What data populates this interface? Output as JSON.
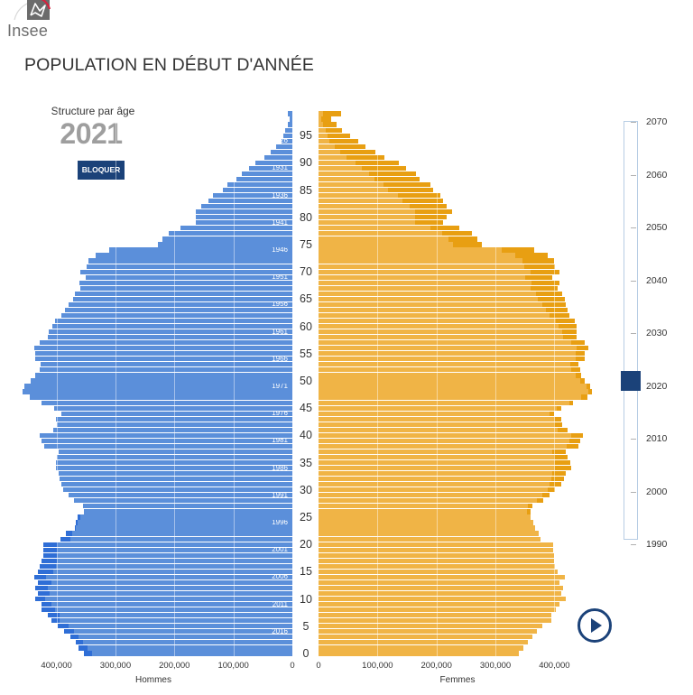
{
  "header": {
    "logo_text": "Insee",
    "title": "POPULATION EN DÉBUT D'ANNÉE"
  },
  "panel": {
    "subtitle": "Structure par âge",
    "year": "2021",
    "lock_button": "BLOQUER"
  },
  "slider": {
    "min": 1990,
    "max": 2070,
    "value": 2021,
    "labels": [
      "2070",
      "2060",
      "2050",
      "2040",
      "2030",
      "2020",
      "2010",
      "2000",
      "1990"
    ]
  },
  "play_button": {
    "icon": "play-icon"
  },
  "colors": {
    "hommes": "#5b8fda",
    "hommes_surplus": "#2f6ed6",
    "femmes": "#f0b446",
    "femmes_surplus": "#e89f12",
    "accent": "#1b4279"
  },
  "chart_data": {
    "type": "bar",
    "subtype": "population-pyramid",
    "title": "Structure par âge",
    "year": 2021,
    "xlabel_left": "Hommes",
    "xlabel_right": "Femmes",
    "ylabel": "Âge",
    "categories": [
      0,
      1,
      2,
      3,
      4,
      5,
      6,
      7,
      8,
      9,
      10,
      11,
      12,
      13,
      14,
      15,
      16,
      17,
      18,
      19,
      20,
      21,
      22,
      23,
      24,
      25,
      26,
      27,
      28,
      29,
      30,
      31,
      32,
      33,
      34,
      35,
      36,
      37,
      38,
      39,
      40,
      41,
      42,
      43,
      44,
      45,
      46,
      47,
      48,
      49,
      50,
      51,
      52,
      53,
      54,
      55,
      56,
      57,
      58,
      59,
      60,
      61,
      62,
      63,
      64,
      65,
      66,
      67,
      68,
      69,
      70,
      71,
      72,
      73,
      74,
      75,
      76,
      77,
      78,
      79,
      80,
      81,
      82,
      83,
      84,
      85,
      86,
      87,
      88,
      89,
      90,
      91,
      92,
      93,
      94,
      95,
      96,
      97,
      98,
      99
    ],
    "series": [
      {
        "name": "Hommes",
        "values": [
          354000,
          363000,
          368000,
          376000,
          387000,
          398000,
          408000,
          415000,
          425000,
          425000,
          436000,
          431000,
          436000,
          431000,
          438000,
          431000,
          429000,
          425000,
          423000,
          423000,
          423000,
          393000,
          384000,
          369000,
          368000,
          364000,
          353000,
          355000,
          371000,
          380000,
          389000,
          391000,
          395000,
          396000,
          401000,
          401000,
          399000,
          396000,
          421000,
          425000,
          429000,
          406000,
          399000,
          401000,
          391000,
          404000,
          425000,
          446000,
          457000,
          454000,
          444000,
          436000,
          428000,
          427000,
          436000,
          436000,
          437000,
          429000,
          415000,
          413000,
          407000,
          403000,
          391000,
          385000,
          379000,
          372000,
          369000,
          359000,
          361000,
          351000,
          359000,
          349000,
          346000,
          334000,
          310000,
          228000,
          220000,
          210000,
          189000,
          164000,
          164000,
          164000,
          155000,
          142000,
          134000,
          118000,
          110000,
          95000,
          85000,
          73000,
          62000,
          47000,
          37000,
          27000,
          18000,
          15000,
          12000,
          8000,
          5000,
          7000
        ]
      },
      {
        "name": "Femmes",
        "values": [
          339000,
          348000,
          355000,
          362000,
          370000,
          380000,
          395000,
          395000,
          403000,
          408000,
          419000,
          412000,
          415000,
          409000,
          418000,
          405000,
          401000,
          400000,
          399000,
          398000,
          398000,
          376000,
          374000,
          367000,
          364000,
          359000,
          360000,
          362000,
          381000,
          391000,
          401000,
          411000,
          416000,
          419000,
          428000,
          427000,
          423000,
          419000,
          440000,
          444000,
          448000,
          423000,
          413000,
          412000,
          400000,
          412000,
          432000,
          456000,
          464000,
          461000,
          452000,
          446000,
          443000,
          440000,
          451000,
          452000,
          458000,
          452000,
          438000,
          438000,
          438000,
          434000,
          425000,
          423000,
          420000,
          418000,
          413000,
          405000,
          409000,
          397000,
          409000,
          401000,
          399000,
          388000,
          366000,
          277000,
          269000,
          260000,
          239000,
          211000,
          218000,
          227000,
          218000,
          211000,
          206000,
          194000,
          189000,
          172000,
          166000,
          148000,
          136000,
          112000,
          96000,
          80000,
          67000,
          53000,
          40000,
          30000,
          22000,
          39000
        ]
      }
    ],
    "age_ticks": [
      0,
      5,
      10,
      15,
      20,
      25,
      30,
      35,
      40,
      45,
      50,
      55,
      60,
      65,
      70,
      75,
      80,
      85,
      90,
      95
    ],
    "birth_year_labels": [
      {
        "age": 94,
        "label": "1926"
      },
      {
        "age": 89,
        "label": "1931"
      },
      {
        "age": 84,
        "label": "1936"
      },
      {
        "age": 79,
        "label": "1941"
      },
      {
        "age": 74,
        "label": "1946"
      },
      {
        "age": 69,
        "label": "1951"
      },
      {
        "age": 64,
        "label": "1956"
      },
      {
        "age": 59,
        "label": "1961"
      },
      {
        "age": 54,
        "label": "1966"
      },
      {
        "age": 49,
        "label": "1971"
      },
      {
        "age": 44,
        "label": "1976"
      },
      {
        "age": 39,
        "label": "1981"
      },
      {
        "age": 34,
        "label": "1986"
      },
      {
        "age": 29,
        "label": "1991"
      },
      {
        "age": 24,
        "label": "1996"
      },
      {
        "age": 19,
        "label": "2001"
      },
      {
        "age": 14,
        "label": "2006"
      },
      {
        "age": 9,
        "label": "2011"
      },
      {
        "age": 4,
        "label": "2016"
      }
    ],
    "x_ticks_hommes": [
      {
        "value": 400000,
        "label": "400,000"
      },
      {
        "value": 300000,
        "label": "300,000"
      },
      {
        "value": 200000,
        "label": "200,000"
      },
      {
        "value": 100000,
        "label": "100,000"
      },
      {
        "value": 0,
        "label": "0"
      }
    ],
    "x_ticks_femmes": [
      {
        "value": 0,
        "label": "0"
      },
      {
        "value": 100000,
        "label": "100,000"
      },
      {
        "value": 200000,
        "label": "200,000"
      },
      {
        "value": 300000,
        "label": "300,000"
      },
      {
        "value": 400000,
        "label": "400,000"
      }
    ],
    "xlim": [
      0,
      470000
    ],
    "grid": true,
    "legend": "none"
  }
}
